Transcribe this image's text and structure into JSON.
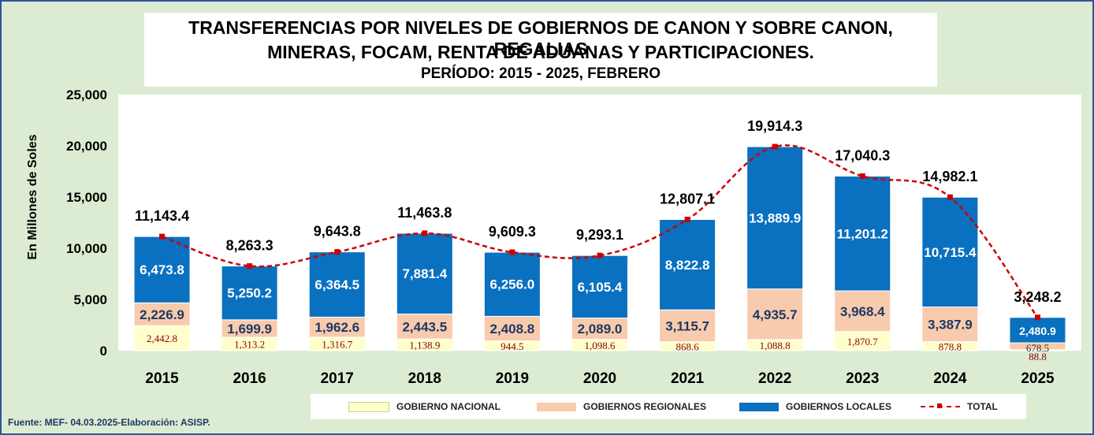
{
  "title": {
    "line1": "TRANSFERENCIAS  POR NIVELES DE GOBIERNOS DE CANON Y SOBRE CANON, REGALIAS",
    "line2": "MINERAS, FOCAM, RENTA DE ADUANAS  Y PARTICIPACIONES.",
    "line3": "PERÍODO: 2015 - 2025, FEBRERO"
  },
  "source": "Fuente: MEF-  04.03.2025-Elaboración:  ASISP.",
  "colors": {
    "nacional": "#ffffcc",
    "regionales": "#f8cbad",
    "locales": "#0a70c0",
    "total": "#cc0000",
    "plot_bg": "#ffffff",
    "frame_bg": "#dcecd2"
  },
  "chart_data": {
    "type": "bar",
    "stacked": true,
    "categories": [
      "2015",
      "2016",
      "2017",
      "2018",
      "2019",
      "2020",
      "2021",
      "2022",
      "2023",
      "2024",
      "2025"
    ],
    "series": [
      {
        "name": "GOBIERNO NACIONAL",
        "values": [
          2442.8,
          1313.2,
          1316.7,
          1138.9,
          944.5,
          1098.6,
          868.6,
          1088.8,
          1870.7,
          878.8,
          88.8
        ],
        "labels": [
          "2,442.8",
          "1,313.2",
          "1,316.7",
          "1,138.9",
          "944.5",
          "1,098.6",
          "868.6",
          "1,088.8",
          "1,870.7",
          "878.8",
          "88.8"
        ]
      },
      {
        "name": "GOBIERNOS REGIONALES",
        "values": [
          2226.9,
          1699.9,
          1962.6,
          2443.5,
          2408.8,
          2089.0,
          3115.7,
          4935.7,
          3968.4,
          3387.9,
          678.5
        ],
        "labels": [
          "2,226.9",
          "1,699.9",
          "1,962.6",
          "2,443.5",
          "2,408.8",
          "2,089.0",
          "3,115.7",
          "4,935.7",
          "3,968.4",
          "3,387.9",
          "678.5"
        ]
      },
      {
        "name": "GOBIERNOS LOCALES",
        "values": [
          6473.8,
          5250.2,
          6364.5,
          7881.4,
          6256.0,
          6105.4,
          8822.8,
          13889.9,
          11201.2,
          10715.4,
          2480.9
        ],
        "labels": [
          "6,473.8",
          "5,250.2",
          "6,364.5",
          "7,881.4",
          "6,256.0",
          "6,105.4",
          "8,822.8",
          "13,889.9",
          "11,201.2",
          "10,715.4",
          "2,480.9"
        ]
      }
    ],
    "total": {
      "name": "TOTAL",
      "values": [
        11143.4,
        8263.3,
        9643.8,
        11463.8,
        9609.3,
        9293.1,
        12807.1,
        19914.3,
        17040.3,
        14982.1,
        3248.2
      ],
      "labels": [
        "11,143.4",
        "8,263.3",
        "9,643.8",
        "11,463.8",
        "9,609.3",
        "9,293.1",
        "12,807.1",
        "19,914.3",
        "17,040.3",
        "14,982.1",
        "3,248.2"
      ]
    },
    "ylabel": "En Millones de Soles",
    "ylim": [
      0,
      25000
    ],
    "yticks": [
      0,
      5000,
      10000,
      15000,
      20000,
      25000
    ],
    "ytick_labels": [
      "0",
      "5,000",
      "10,000",
      "15,000",
      "20,000",
      "25,000"
    ],
    "legend_position": "bottom",
    "grid": false
  }
}
